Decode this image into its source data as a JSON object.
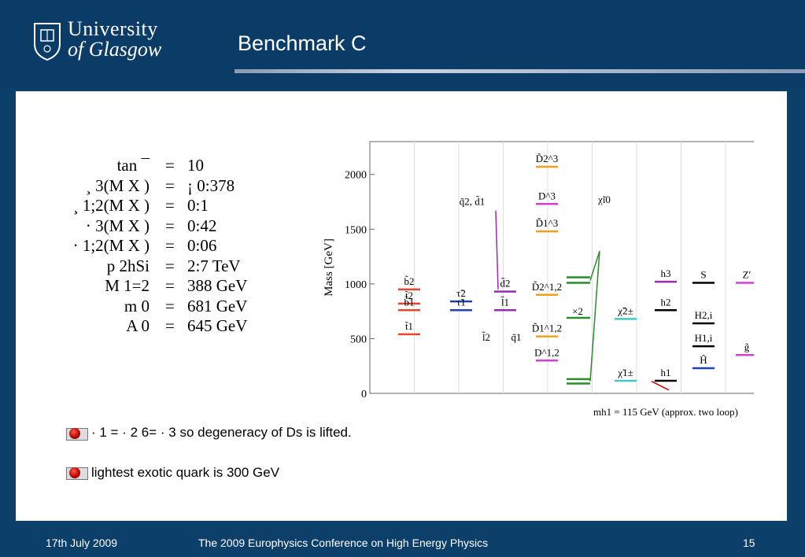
{
  "logo": {
    "line1": "University",
    "line2": "of Glasgow"
  },
  "title": "Benchmark C",
  "params": [
    {
      "lhs": "tan ¯",
      "op": "=",
      "rhs": "10"
    },
    {
      "lhs": "¸ 3(M X )",
      "op": "=",
      "rhs": "¡ 0:378"
    },
    {
      "lhs": "¸ 1;2(M X )",
      "op": "=",
      "rhs": "0:1"
    },
    {
      "lhs": "· 3(M X )",
      "op": "=",
      "rhs": "0:42"
    },
    {
      "lhs": "· 1;2(M X )",
      "op": "=",
      "rhs": "0:06"
    },
    {
      "lhs": "p 2hSi",
      "op": "=",
      "rhs": "2:7 TeV"
    },
    {
      "lhs": "M 1=2",
      "op": "=",
      "rhs": "388 GeV"
    },
    {
      "lhs": "m 0",
      "op": "=",
      "rhs": "681 GeV"
    },
    {
      "lhs": "A 0",
      "op": "=",
      "rhs": "645 GeV"
    }
  ],
  "chart_data": {
    "type": "spectrum",
    "ylabel": "Mass [GeV]",
    "ylim": [
      0,
      2300
    ],
    "yticks": [
      "0",
      "500",
      "1000",
      "1500",
      "2000"
    ],
    "levels": [
      {
        "label": "b̃2",
        "value": 950,
        "color": "#e8462a"
      },
      {
        "label": "t̃2",
        "value": 820,
        "color": "#e8462a"
      },
      {
        "label": "b̃1",
        "value": 760,
        "color": "#e8462a"
      },
      {
        "label": "t̃1",
        "value": 540,
        "color": "#e8462a"
      },
      {
        "label": "τ̃2",
        "value": 840,
        "color": "#1f3fbf"
      },
      {
        "label": "τ̃1",
        "value": 760,
        "color": "#1f3fbf"
      },
      {
        "label": "d̃2",
        "value": 930,
        "color": "#9a2ab0"
      },
      {
        "label": "l̃1",
        "value": 760,
        "color": "#9a2ab0"
      },
      {
        "label": "D̃2^3",
        "value": 2070,
        "color": "#f0a020"
      },
      {
        "label": "D^3",
        "value": 1730,
        "color": "#d63fd6"
      },
      {
        "label": "D̃1^3",
        "value": 1480,
        "color": "#f0a020"
      },
      {
        "label": "D̃2^1,2",
        "value": 900,
        "color": "#f0a020"
      },
      {
        "label": "D̃1^1,2",
        "value": 520,
        "color": "#f0a020"
      },
      {
        "label": "D^1,2",
        "value": 300,
        "color": "#d63fd6"
      },
      {
        "label": "χ̃2±",
        "value": 680,
        "color": "#3fc8c8"
      },
      {
        "label": "χ̃1±",
        "value": 115,
        "color": "#3fc8c8"
      },
      {
        "label": "h3",
        "value": 1020,
        "color": "#9a2ab0"
      },
      {
        "label": "h2",
        "value": 760,
        "color": "#000000"
      },
      {
        "label": "h1",
        "value": 115,
        "color": "#000000"
      },
      {
        "label": "S",
        "value": 1010,
        "color": "#000000"
      },
      {
        "label": "H2,i",
        "value": 640,
        "color": "#000000"
      },
      {
        "label": "H1,i",
        "value": 430,
        "color": "#000000"
      },
      {
        "label": "H̃",
        "value": 230,
        "color": "#1f3fbf"
      },
      {
        "label": "Z′",
        "value": 1010,
        "color": "#d63fd6"
      },
      {
        "label": "g̃",
        "value": 350,
        "color": "#d63fd6"
      }
    ],
    "annotations": [
      "q̃2, d̃1",
      "χ̃i0",
      "×2",
      "l̃2",
      "q̃1",
      "mh1 = 115 GeV (approx. two loop)"
    ]
  },
  "bullets": [
    {
      "text": "· 1 = · 2 6= · 3 so degeneracy of Ds is lifted."
    },
    {
      "text": "lightest exotic quark is 300 GeV"
    }
  ],
  "footer": {
    "date": "17th July 2009",
    "conference": "The 2009 Europhysics Conference on High Energy Physics",
    "page": "15"
  }
}
